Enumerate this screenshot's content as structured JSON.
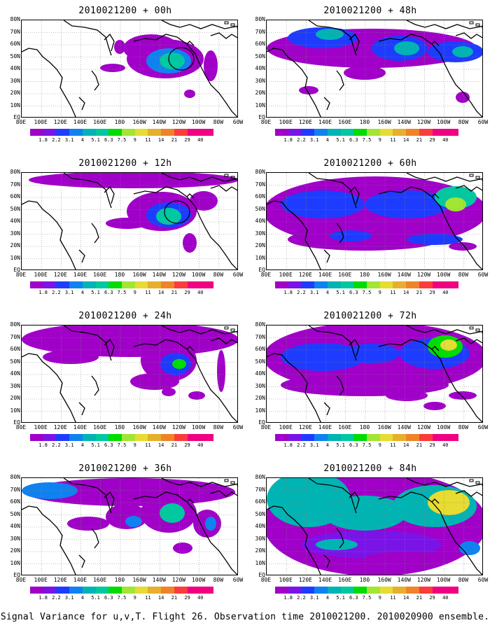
{
  "caption": "Signal Variance for u,v,T. Flight 26. Observation time 2010021200. 2010020900 ensemble.",
  "panels": [
    {
      "title": "2010021200 + 00h"
    },
    {
      "title": "2010021200 + 48h"
    },
    {
      "title": "2010021200 + 12h"
    },
    {
      "title": "2010021200 + 60h"
    },
    {
      "title": "2010021200 + 24h"
    },
    {
      "title": "2010021200 + 72h"
    },
    {
      "title": "2010021200 + 36h"
    },
    {
      "title": "2010021200 + 84h"
    }
  ],
  "lat_labels": [
    "80N",
    "70N",
    "60N",
    "50N",
    "40N",
    "30N",
    "20N",
    "10N",
    "EQ"
  ],
  "lon_labels": [
    "80E",
    "100E",
    "120E",
    "140E",
    "160E",
    "180",
    "160W",
    "140W",
    "120W",
    "100W",
    "80W",
    "60W"
  ],
  "colorbar": {
    "levels": [
      "1.8",
      "2.2",
      "3.1",
      "4",
      "5.1",
      "6.3",
      "7.5",
      "9",
      "11",
      "14",
      "21",
      "29",
      "40"
    ],
    "colors": [
      "#a000c8",
      "#7a14e6",
      "#1e3cff",
      "#0f82f0",
      "#00b4b4",
      "#00c8a0",
      "#00dc00",
      "#a0e632",
      "#e6dc32",
      "#e6af2d",
      "#f08228",
      "#fa3c3c",
      "#f00082"
    ]
  }
}
